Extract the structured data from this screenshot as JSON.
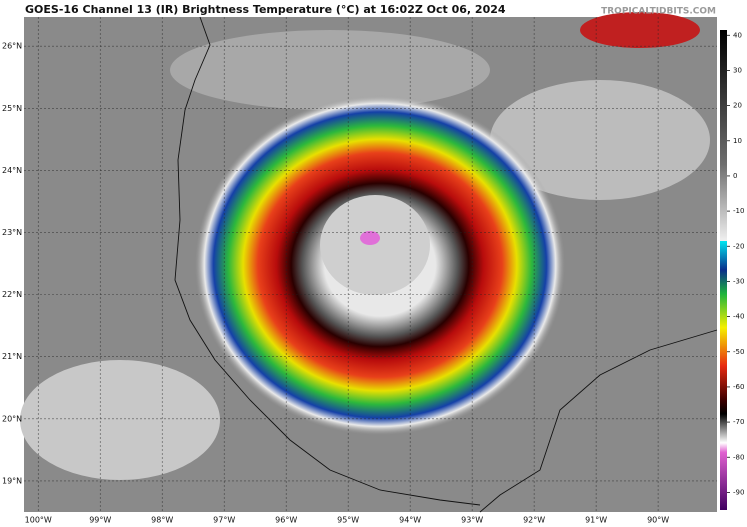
{
  "header": {
    "title": "GOES-16 Channel 13 (IR) Brightness Temperature (°C) at 16:02Z Oct 06, 2024",
    "watermark": "TROPICALTIDBITS.COM"
  },
  "map": {
    "lon_range": [
      -100.23,
      -89.05
    ],
    "lat_range": [
      18.5,
      26.47
    ],
    "lat_labels": [
      {
        "value": 26,
        "label": "26°N"
      },
      {
        "value": 25,
        "label": "25°N"
      },
      {
        "value": 24,
        "label": "24°N"
      },
      {
        "value": 23,
        "label": "23°N"
      },
      {
        "value": 22,
        "label": "22°N"
      },
      {
        "value": 21,
        "label": "21°N"
      },
      {
        "value": 20,
        "label": "20°N"
      },
      {
        "value": 19,
        "label": "19°N"
      }
    ],
    "lon_labels": [
      {
        "value": -100,
        "label": "100°W"
      },
      {
        "value": -99,
        "label": "99°W"
      },
      {
        "value": -98,
        "label": "98°W"
      },
      {
        "value": -97,
        "label": "97°W"
      },
      {
        "value": -96,
        "label": "96°W"
      },
      {
        "value": -95,
        "label": "95°W"
      },
      {
        "value": -94,
        "label": "94°W"
      },
      {
        "value": -93,
        "label": "93°W"
      },
      {
        "value": -92,
        "label": "92°W"
      },
      {
        "value": -91,
        "label": "91°W"
      },
      {
        "value": -90,
        "label": "90°W"
      }
    ]
  },
  "colorbar": {
    "lim": [
      -95,
      41.5
    ],
    "ticks": [
      40,
      30,
      20,
      10,
      0,
      -10,
      -20,
      -30,
      -40,
      -50,
      -60,
      -70,
      -80,
      -90
    ]
  }
}
